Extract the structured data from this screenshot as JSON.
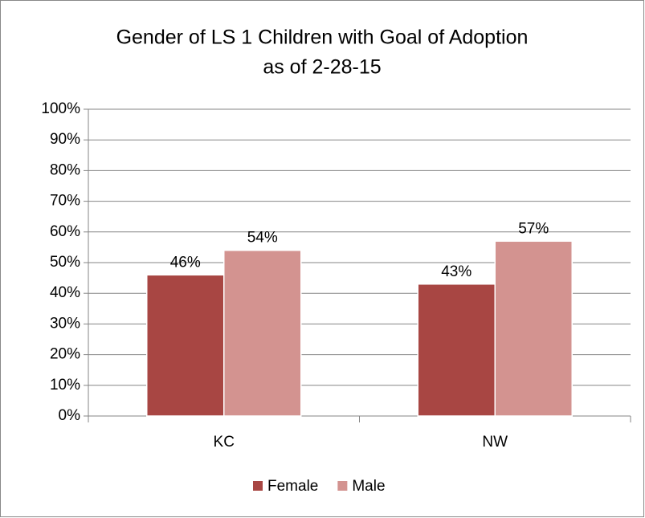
{
  "chart_data": {
    "type": "bar",
    "title": [
      "Gender of LS 1 Children with Goal of Adoption",
      "as of 2-28-15"
    ],
    "categories": [
      "KC",
      "NW"
    ],
    "series": [
      {
        "name": "Female",
        "color": "#a84643",
        "values": [
          46,
          43
        ],
        "value_labels": [
          "46%",
          "43%"
        ]
      },
      {
        "name": "Male",
        "color": "#d39390",
        "values": [
          54,
          57
        ],
        "value_labels": [
          "54%",
          "57%"
        ]
      }
    ],
    "ylim": [
      0,
      100
    ],
    "yticks": [
      {
        "value": 0,
        "label": "0%"
      },
      {
        "value": 10,
        "label": "10%"
      },
      {
        "value": 20,
        "label": "20%"
      },
      {
        "value": 30,
        "label": "30%"
      },
      {
        "value": 40,
        "label": "40%"
      },
      {
        "value": 50,
        "label": "50%"
      },
      {
        "value": 60,
        "label": "60%"
      },
      {
        "value": 70,
        "label": "70%"
      },
      {
        "value": 80,
        "label": "80%"
      },
      {
        "value": 90,
        "label": "90%"
      },
      {
        "value": 100,
        "label": "100%"
      }
    ],
    "grid": true,
    "legend": "bottom"
  }
}
